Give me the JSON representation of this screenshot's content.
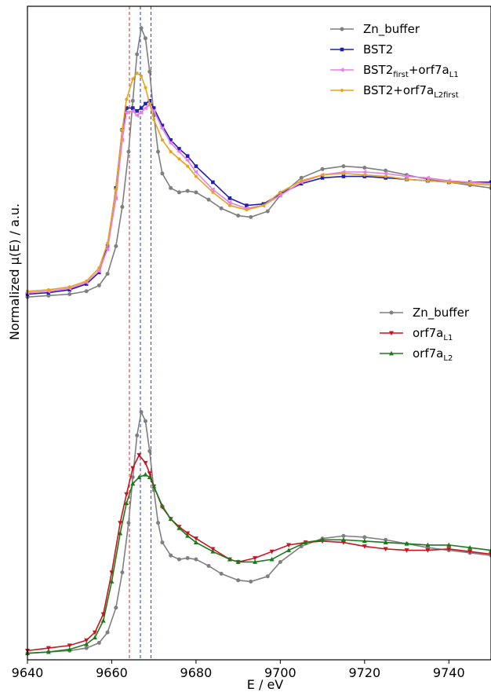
{
  "chart_data": {
    "type": "line",
    "xlabel": "E / eV",
    "ylabel": "Normalized μ(E) / a.u.",
    "xlim": [
      9640,
      9750
    ],
    "x_ticks": [
      9640,
      9660,
      9680,
      9700,
      9720,
      9740
    ],
    "y_ticks_shown": false,
    "grid": false,
    "vertical_reference_lines": [
      {
        "x": 9664.2,
        "color": "#d62728",
        "style": "dashed"
      },
      {
        "x": 9666.8,
        "color": "#1f3fbf",
        "style": "dashed"
      },
      {
        "x": 9669.3,
        "color": "#444466",
        "style": "dashed"
      }
    ],
    "panels": [
      {
        "name": "upper",
        "legend_position": "top-right",
        "ylim": [
          -0.55,
          2.0
        ],
        "series": [
          {
            "name": "Zn_buffer",
            "color": "#7f7f7f",
            "marker": "circle",
            "x": [
              9640,
              9645,
              9650,
              9654,
              9657,
              9659,
              9661,
              9662.5,
              9664,
              9665,
              9666,
              9667,
              9668,
              9669,
              9670,
              9671,
              9672,
              9674,
              9676,
              9678,
              9680,
              9683,
              9686,
              9690,
              9693,
              9697,
              9700,
              9705,
              9710,
              9715,
              9720,
              9725,
              9730,
              9735,
              9740,
              9745,
              9750
            ],
            "y": [
              0.0,
              0.01,
              0.02,
              0.04,
              0.08,
              0.16,
              0.35,
              0.62,
              1.0,
              1.35,
              1.67,
              1.85,
              1.78,
              1.55,
              1.25,
              1.0,
              0.85,
              0.75,
              0.72,
              0.73,
              0.72,
              0.67,
              0.61,
              0.56,
              0.55,
              0.59,
              0.7,
              0.82,
              0.88,
              0.9,
              0.89,
              0.87,
              0.84,
              0.81,
              0.79,
              0.77,
              0.75
            ]
          },
          {
            "name": "BST2",
            "color": "#1f1fb4",
            "marker": "square",
            "x": [
              9640,
              9645,
              9650,
              9654,
              9657,
              9659,
              9661,
              9662.5,
              9663.5,
              9665,
              9666,
              9667,
              9668,
              9669,
              9670,
              9672,
              9674,
              9676,
              9678,
              9680,
              9684,
              9688,
              9692,
              9696,
              9700,
              9705,
              9710,
              9715,
              9720,
              9725,
              9730,
              9735,
              9740,
              9745,
              9750
            ],
            "y": [
              0.02,
              0.03,
              0.05,
              0.09,
              0.17,
              0.35,
              0.75,
              1.15,
              1.3,
              1.3,
              1.28,
              1.3,
              1.33,
              1.35,
              1.3,
              1.18,
              1.08,
              1.02,
              0.97,
              0.9,
              0.79,
              0.68,
              0.63,
              0.64,
              0.71,
              0.78,
              0.82,
              0.83,
              0.83,
              0.82,
              0.81,
              0.8,
              0.79,
              0.79,
              0.79
            ]
          },
          {
            "name": "BST2_first+orf7a_L1",
            "color": "#e87ee6",
            "marker": "triangle-left",
            "x": [
              9640,
              9645,
              9650,
              9654,
              9657,
              9659,
              9661,
              9662.5,
              9663.5,
              9665,
              9666,
              9667,
              9668,
              9669,
              9670,
              9672,
              9674,
              9676,
              9678,
              9680,
              9684,
              9688,
              9692,
              9696,
              9700,
              9705,
              9710,
              9715,
              9720,
              9725,
              9730,
              9735,
              9740,
              9745,
              9750
            ],
            "y": [
              0.03,
              0.04,
              0.06,
              0.1,
              0.18,
              0.33,
              0.68,
              1.08,
              1.27,
              1.28,
              1.25,
              1.27,
              1.3,
              1.32,
              1.28,
              1.16,
              1.06,
              1.0,
              0.94,
              0.86,
              0.74,
              0.65,
              0.61,
              0.63,
              0.7,
              0.79,
              0.84,
              0.86,
              0.86,
              0.85,
              0.83,
              0.82,
              0.8,
              0.79,
              0.78
            ]
          },
          {
            "name": "BST2+orf7a_L2first",
            "color": "#e8a31c",
            "marker": "circle-small",
            "x": [
              9640,
              9645,
              9650,
              9654,
              9657,
              9659,
              9661,
              9662.5,
              9663.5,
              9665,
              9666,
              9667,
              9668,
              9669,
              9670,
              9672,
              9674,
              9676,
              9678,
              9680,
              9684,
              9688,
              9692,
              9696,
              9700,
              9705,
              9710,
              9715,
              9720,
              9725,
              9730,
              9735,
              9740,
              9745,
              9750
            ],
            "y": [
              0.04,
              0.05,
              0.07,
              0.11,
              0.2,
              0.37,
              0.74,
              1.15,
              1.36,
              1.5,
              1.54,
              1.52,
              1.44,
              1.33,
              1.22,
              1.08,
              1.0,
              0.95,
              0.9,
              0.83,
              0.72,
              0.63,
              0.6,
              0.63,
              0.72,
              0.8,
              0.84,
              0.85,
              0.84,
              0.83,
              0.81,
              0.8,
              0.79,
              0.78,
              0.77
            ]
          }
        ]
      },
      {
        "name": "lower",
        "legend_position": "right",
        "ylim": [
          -0.05,
          2.6
        ],
        "series": [
          {
            "name": "Zn_buffer",
            "color": "#7f7f7f",
            "marker": "circle",
            "x": [
              9640,
              9645,
              9650,
              9654,
              9657,
              9659,
              9661,
              9662.5,
              9664,
              9665,
              9666,
              9667,
              9668,
              9669,
              9670,
              9671,
              9672,
              9674,
              9676,
              9678,
              9680,
              9683,
              9686,
              9690,
              9693,
              9697,
              9700,
              9705,
              9710,
              9715,
              9720,
              9725,
              9730,
              9735,
              9740,
              9745,
              9750
            ],
            "y": [
              0.0,
              0.01,
              0.02,
              0.04,
              0.08,
              0.16,
              0.35,
              0.62,
              1.0,
              1.35,
              1.67,
              1.85,
              1.78,
              1.55,
              1.25,
              1.0,
              0.85,
              0.75,
              0.72,
              0.73,
              0.72,
              0.67,
              0.61,
              0.56,
              0.55,
              0.59,
              0.7,
              0.82,
              0.88,
              0.9,
              0.89,
              0.87,
              0.84,
              0.81,
              0.79,
              0.77,
              0.75
            ]
          },
          {
            "name": "orf7a_L1",
            "color": "#c8141e",
            "marker": "triangle-down",
            "x": [
              9640,
              9645,
              9650,
              9654,
              9656,
              9658,
              9660,
              9662,
              9663.5,
              9665,
              9666.5,
              9668,
              9669,
              9670,
              9672,
              9674,
              9676,
              9678,
              9680,
              9684,
              9688,
              9690,
              9694,
              9698,
              9702,
              9706,
              9710,
              9715,
              9720,
              9725,
              9730,
              9735,
              9740,
              9745,
              9750
            ],
            "y": [
              0.02,
              0.04,
              0.06,
              0.1,
              0.16,
              0.3,
              0.62,
              1.0,
              1.22,
              1.42,
              1.52,
              1.46,
              1.38,
              1.28,
              1.12,
              1.03,
              0.97,
              0.92,
              0.88,
              0.8,
              0.72,
              0.7,
              0.73,
              0.78,
              0.83,
              0.85,
              0.86,
              0.85,
              0.82,
              0.8,
              0.79,
              0.79,
              0.8,
              0.78,
              0.76
            ]
          },
          {
            "name": "orf7a_L2",
            "color": "#1a7a1a",
            "marker": "triangle-up",
            "x": [
              9640,
              9645,
              9650,
              9654,
              9656,
              9658,
              9660,
              9662,
              9663.5,
              9665,
              9666.5,
              9668,
              9669,
              9670,
              9672,
              9674,
              9676,
              9678,
              9680,
              9684,
              9688,
              9690,
              9694,
              9698,
              9702,
              9706,
              9710,
              9715,
              9720,
              9725,
              9730,
              9735,
              9740,
              9745,
              9750
            ],
            "y": [
              0.0,
              0.01,
              0.03,
              0.07,
              0.12,
              0.25,
              0.55,
              0.92,
              1.15,
              1.3,
              1.35,
              1.37,
              1.35,
              1.28,
              1.13,
              1.03,
              0.96,
              0.9,
              0.85,
              0.78,
              0.72,
              0.7,
              0.7,
              0.72,
              0.79,
              0.85,
              0.87,
              0.87,
              0.86,
              0.85,
              0.84,
              0.83,
              0.83,
              0.81,
              0.79
            ]
          }
        ]
      }
    ]
  },
  "legends": {
    "upper": [
      {
        "base": "Zn_buffer",
        "parts": [
          {
            "t": "Zn_buffer"
          }
        ]
      },
      {
        "base": "BST2",
        "parts": [
          {
            "t": "BST2"
          }
        ]
      },
      {
        "base": "BST2",
        "parts": [
          {
            "t": "BST2"
          },
          {
            "t": "first",
            "sub": true
          },
          {
            "t": "+orf7a"
          },
          {
            "t": "L1",
            "sub": true
          }
        ]
      },
      {
        "base": "BST2+orf7a",
        "parts": [
          {
            "t": "BST2+orf7a"
          },
          {
            "t": "L2first",
            "sub": true
          }
        ]
      }
    ],
    "lower": [
      {
        "base": "Zn_buffer",
        "parts": [
          {
            "t": "Zn_buffer"
          }
        ]
      },
      {
        "base": "orf7a",
        "parts": [
          {
            "t": "orf7a"
          },
          {
            "t": "L1",
            "sub": true
          }
        ]
      },
      {
        "base": "orf7a",
        "parts": [
          {
            "t": "orf7a"
          },
          {
            "t": "L2",
            "sub": true
          }
        ]
      }
    ]
  }
}
